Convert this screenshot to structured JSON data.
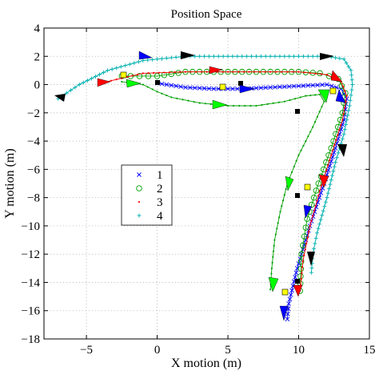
{
  "chart_data": {
    "type": "line",
    "title": "Position Space",
    "xlabel": "X motion (m)",
    "ylabel": "Y motion (m)",
    "xlim": [
      -8,
      15
    ],
    "ylim": [
      -18,
      4
    ],
    "xticks": [
      -5,
      0,
      5,
      10,
      15
    ],
    "yticks": [
      -18,
      -16,
      -14,
      -12,
      -10,
      -8,
      -6,
      -4,
      -2,
      0,
      2,
      4
    ],
    "grid": true,
    "legend_position": "center-left",
    "series": [
      {
        "name": "1",
        "marker": "x",
        "color": "#0000ff",
        "points": [
          [
            0,
            0.1
          ],
          [
            2,
            -0.2
          ],
          [
            4,
            -0.3
          ],
          [
            6,
            -0.3
          ],
          [
            8,
            -0.2
          ],
          [
            10,
            -0.1
          ],
          [
            12,
            0
          ],
          [
            13,
            -0.3
          ],
          [
            13.4,
            -1
          ],
          [
            13.2,
            -2.5
          ],
          [
            12.6,
            -4.5
          ],
          [
            11.8,
            -7
          ],
          [
            10.8,
            -10
          ],
          [
            9.9,
            -13
          ],
          [
            9.3,
            -15.5
          ],
          [
            9.2,
            -16.6
          ]
        ]
      },
      {
        "name": "2",
        "marker": "o",
        "color": "#00a000",
        "points": [
          [
            -2.5,
            0.6
          ],
          [
            0,
            0.6
          ],
          [
            2,
            0.9
          ],
          [
            4,
            0.9
          ],
          [
            6,
            0.9
          ],
          [
            8,
            0.9
          ],
          [
            10,
            0.9
          ],
          [
            11.5,
            0.8
          ],
          [
            12.8,
            0.4
          ],
          [
            13.3,
            -0.6
          ],
          [
            13.1,
            -2
          ],
          [
            12.3,
            -4.5
          ],
          [
            11.4,
            -7
          ],
          [
            10.6,
            -9.5
          ],
          [
            10.2,
            -12
          ],
          [
            10.1,
            -14.6
          ]
        ]
      },
      {
        "name": "3",
        "marker": "dot",
        "color": "#ff0000",
        "points": [
          [
            -4,
            0.1
          ],
          [
            -1,
            0.8
          ],
          [
            2,
            0.9
          ],
          [
            5,
            0.9
          ],
          [
            8,
            0.9
          ],
          [
            10,
            0.9
          ],
          [
            12,
            0.7
          ],
          [
            13,
            0.2
          ],
          [
            13.4,
            -0.8
          ],
          [
            13.1,
            -2.5
          ],
          [
            12.3,
            -5
          ],
          [
            11.5,
            -7.5
          ],
          [
            10.8,
            -10
          ],
          [
            10.3,
            -12.5
          ],
          [
            10.1,
            -14.6
          ]
        ]
      },
      {
        "name": "4",
        "marker": "+",
        "color": "#00b0b0",
        "points": [
          [
            -7,
            -1
          ],
          [
            -5.5,
            0
          ],
          [
            -3.5,
            1
          ],
          [
            -1,
            1.7
          ],
          [
            2,
            2
          ],
          [
            5,
            2
          ],
          [
            8,
            2
          ],
          [
            10,
            2
          ],
          [
            12,
            2
          ],
          [
            13.2,
            1.8
          ],
          [
            13.7,
            1
          ],
          [
            13.8,
            0
          ],
          [
            13.6,
            -1.5
          ],
          [
            13.2,
            -3.5
          ],
          [
            12.6,
            -5.5
          ],
          [
            12,
            -8
          ],
          [
            11.3,
            -10.5
          ],
          [
            11,
            -12
          ],
          [
            10.9,
            -13.3
          ]
        ]
      },
      {
        "name": "",
        "marker": "dot",
        "color": "#00a000",
        "points": [
          [
            -2.5,
            0.2
          ],
          [
            -1,
            0
          ],
          [
            0,
            -0.5
          ],
          [
            1,
            -0.9
          ],
          [
            3,
            -1.3
          ],
          [
            5,
            -1.5
          ],
          [
            7,
            -1.5
          ],
          [
            9,
            -1.2
          ],
          [
            10.5,
            -0.8
          ],
          [
            11.5,
            -0.7
          ],
          [
            11.8,
            -1.2
          ],
          [
            11,
            -3
          ],
          [
            10,
            -5
          ],
          [
            9.2,
            -7
          ],
          [
            8.7,
            -9
          ],
          [
            8.3,
            -11
          ],
          [
            8.1,
            -13
          ],
          [
            8.0,
            -14.5
          ]
        ]
      }
    ]
  }
}
